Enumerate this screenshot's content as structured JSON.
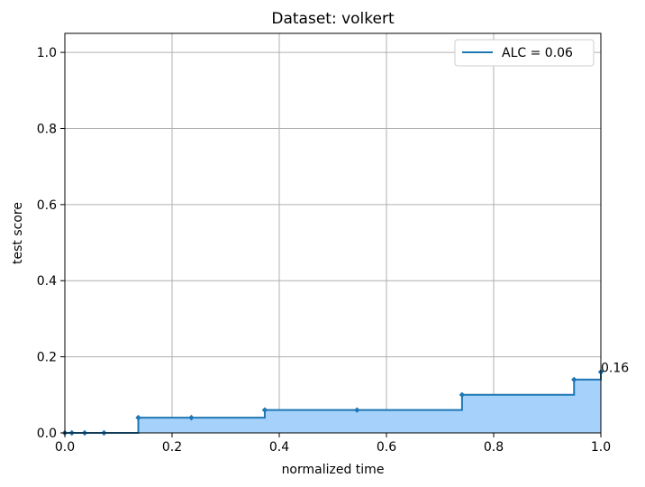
{
  "chart_data": {
    "type": "area",
    "title": "Dataset: volkert",
    "xlabel": "normalized time",
    "ylabel": "test score",
    "xlim": [
      0,
      1
    ],
    "ylim": [
      0,
      1.05
    ],
    "xticks": [
      0.0,
      0.2,
      0.4,
      0.6,
      0.8,
      1.0
    ],
    "yticks": [
      0.0,
      0.2,
      0.4,
      0.6,
      0.8,
      1.0
    ],
    "xtick_labels": [
      "0.0",
      "0.2",
      "0.4",
      "0.6",
      "0.8",
      "1.0"
    ],
    "ytick_labels": [
      "0.0",
      "0.2",
      "0.4",
      "0.6",
      "0.8",
      "1.0"
    ],
    "grid": true,
    "legend_position": "top-right",
    "series": [
      {
        "name": "ALC = 0.06",
        "color": "#1f77b4",
        "fill_color": "#a6d1fb",
        "step": "post",
        "x": [
          0.0,
          0.013,
          0.037,
          0.073,
          0.137,
          0.236,
          0.373,
          0.545,
          0.741,
          0.95,
          1.0
        ],
        "y": [
          0.0,
          0.0,
          0.0,
          0.0,
          0.04,
          0.04,
          0.06,
          0.06,
          0.1,
          0.14,
          0.16
        ]
      }
    ],
    "annotations": [
      {
        "text": "0.16",
        "x": 1.0,
        "y": 0.16
      }
    ]
  }
}
